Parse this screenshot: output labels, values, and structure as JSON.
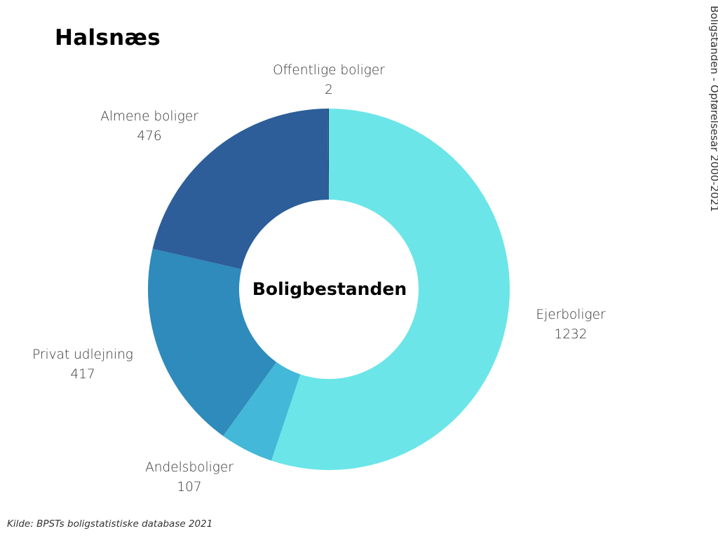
{
  "header": {
    "title": "Halsnæs",
    "side_label": "Boligstanden - Opførelsesår 2000-2021"
  },
  "footer": {
    "source": "Kilde: BPSTs boligstatistiske database 2021"
  },
  "chart_data": {
    "type": "pie",
    "variant": "donut",
    "center_label": "Boligbestanden",
    "categories": [
      "Ejerboliger",
      "Andelsboliger",
      "Privat udlejning",
      "Almene boliger",
      "Offentlige boliger"
    ],
    "values": [
      1232,
      107,
      417,
      476,
      2
    ],
    "colors": [
      "#6be5e8",
      "#43b8d8",
      "#2e8bbb",
      "#2d5e99",
      "#1c3f6e"
    ],
    "data_labels": [
      {
        "name": "Ejerboliger",
        "value": "1232"
      },
      {
        "name": "Andelsboliger",
        "value": "107"
      },
      {
        "name": "Privat udlejning",
        "value": "417"
      },
      {
        "name": "Almene boliger",
        "value": "476"
      },
      {
        "name": "Offentlige boliger",
        "value": "2"
      }
    ],
    "start": "top",
    "direction": "clockwise"
  }
}
